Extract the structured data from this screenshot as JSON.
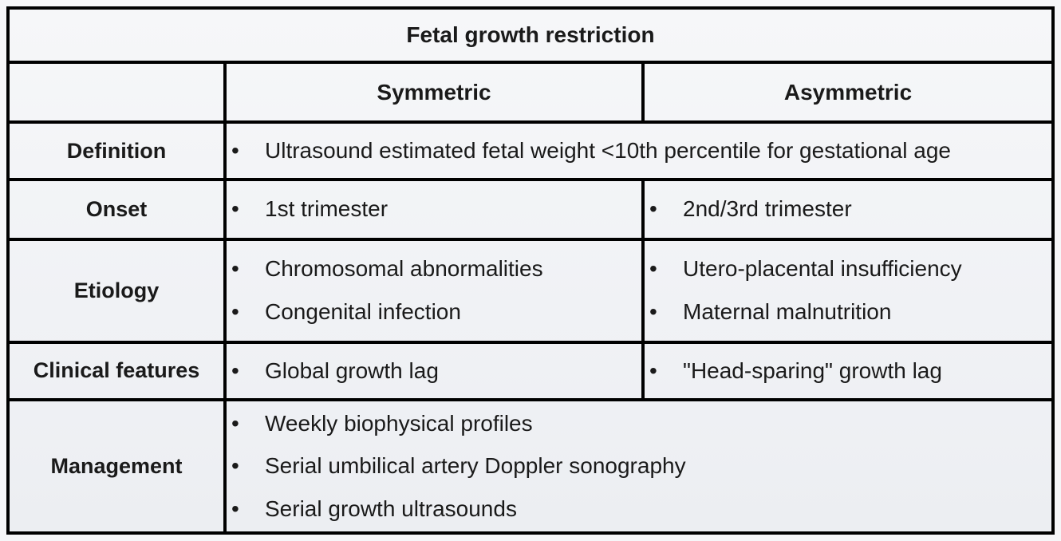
{
  "table": {
    "title": "Fetal growth restriction",
    "columns": [
      "Symmetric",
      "Asymmetric"
    ],
    "rows": [
      {
        "label": "Definition",
        "span_both_columns": true,
        "items": [
          "Ultrasound estimated fetal weight <10th percentile for gestational age"
        ]
      },
      {
        "label": "Onset",
        "symmetric": [
          "1st trimester"
        ],
        "asymmetric": [
          "2nd/3rd trimester"
        ]
      },
      {
        "label": "Etiology",
        "symmetric": [
          "Chromosomal abnormalities",
          "Congenital infection"
        ],
        "asymmetric": [
          "Utero-placental insufficiency",
          "Maternal malnutrition"
        ]
      },
      {
        "label": "Clinical features",
        "symmetric": [
          "Global growth lag"
        ],
        "asymmetric": [
          "\"Head-sparing\" growth lag"
        ]
      },
      {
        "label": "Management",
        "span_both_columns": true,
        "items": [
          "Weekly biophysical profiles",
          "Serial umbilical artery Doppler sonography",
          "Serial growth ultrasounds"
        ]
      }
    ],
    "colors": {
      "border": "#000000",
      "cell_background_top": "#f6f7f9",
      "cell_background_bottom": "#eceef2",
      "text": "#1a1a1a"
    }
  }
}
